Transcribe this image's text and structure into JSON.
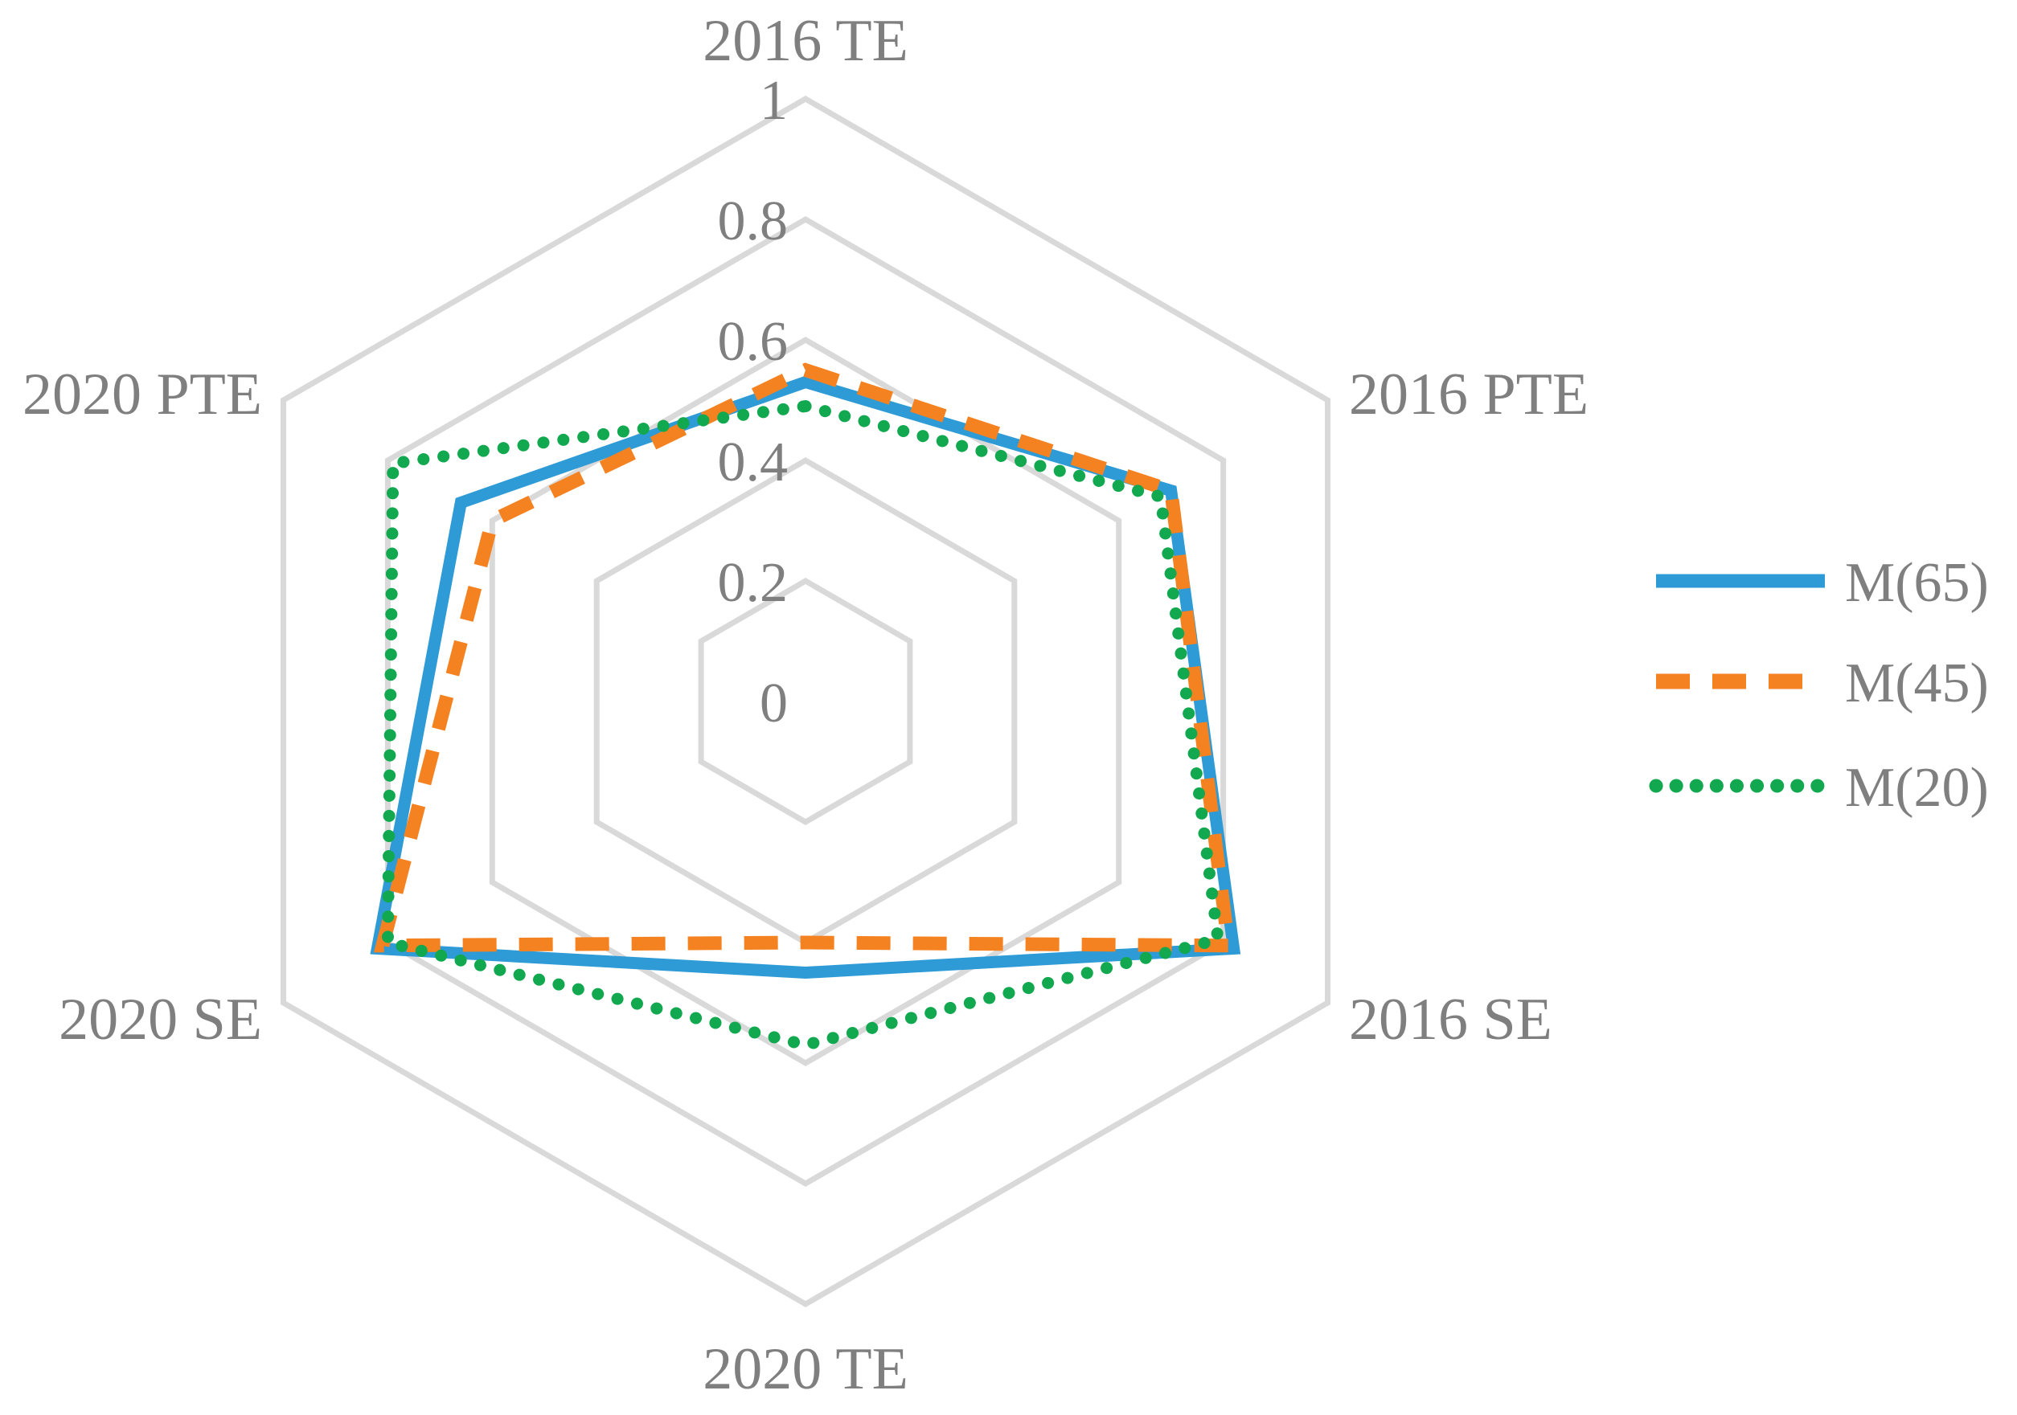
{
  "chart_data": {
    "type": "radar",
    "categories": [
      "2016 TE",
      "2016 PTE",
      "2016 SE",
      "2020 TE",
      "2020 SE",
      "2020 PTE"
    ],
    "rlim": [
      0,
      1
    ],
    "ticks": [
      "0",
      "0.2",
      "0.4",
      "0.6",
      "0.8",
      "1"
    ],
    "tick_values": [
      0,
      0.2,
      0.4,
      0.6,
      0.8,
      1.0
    ],
    "grid": true,
    "legend_position": "right",
    "series": [
      {
        "name": "M(65)",
        "values": [
          0.53,
          0.7,
          0.82,
          0.45,
          0.82,
          0.66
        ],
        "color": "#2e9bd6",
        "style": "solid"
      },
      {
        "name": "M(45)",
        "values": [
          0.55,
          0.7,
          0.81,
          0.4,
          0.81,
          0.6
        ],
        "color": "#f58220",
        "style": "dashed"
      },
      {
        "name": "M(20)",
        "values": [
          0.49,
          0.68,
          0.79,
          0.57,
          0.8,
          0.79
        ],
        "color": "#12a84f",
        "style": "dotted"
      }
    ]
  }
}
